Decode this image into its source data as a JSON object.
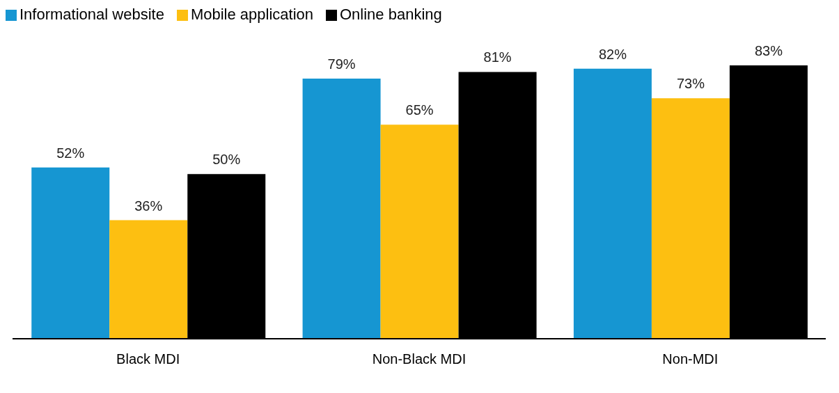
{
  "chart_data": {
    "type": "bar",
    "categories": [
      "Black MDI",
      "Non-Black MDI",
      "Non-MDI"
    ],
    "series": [
      {
        "name": "Informational website",
        "color": "#1696d2",
        "values": [
          52,
          79,
          82
        ],
        "value_labels": [
          "52%",
          "79%",
          "82%"
        ]
      },
      {
        "name": "Mobile application",
        "color": "#fdbf11",
        "values": [
          36,
          65,
          73
        ],
        "value_labels": [
          "36%",
          "65%",
          "73%"
        ]
      },
      {
        "name": "Online banking",
        "color": "#000000",
        "values": [
          50,
          81,
          83
        ],
        "value_labels": [
          "50%",
          "81%",
          "83%"
        ]
      }
    ],
    "legend": "top left",
    "grid": false
  }
}
